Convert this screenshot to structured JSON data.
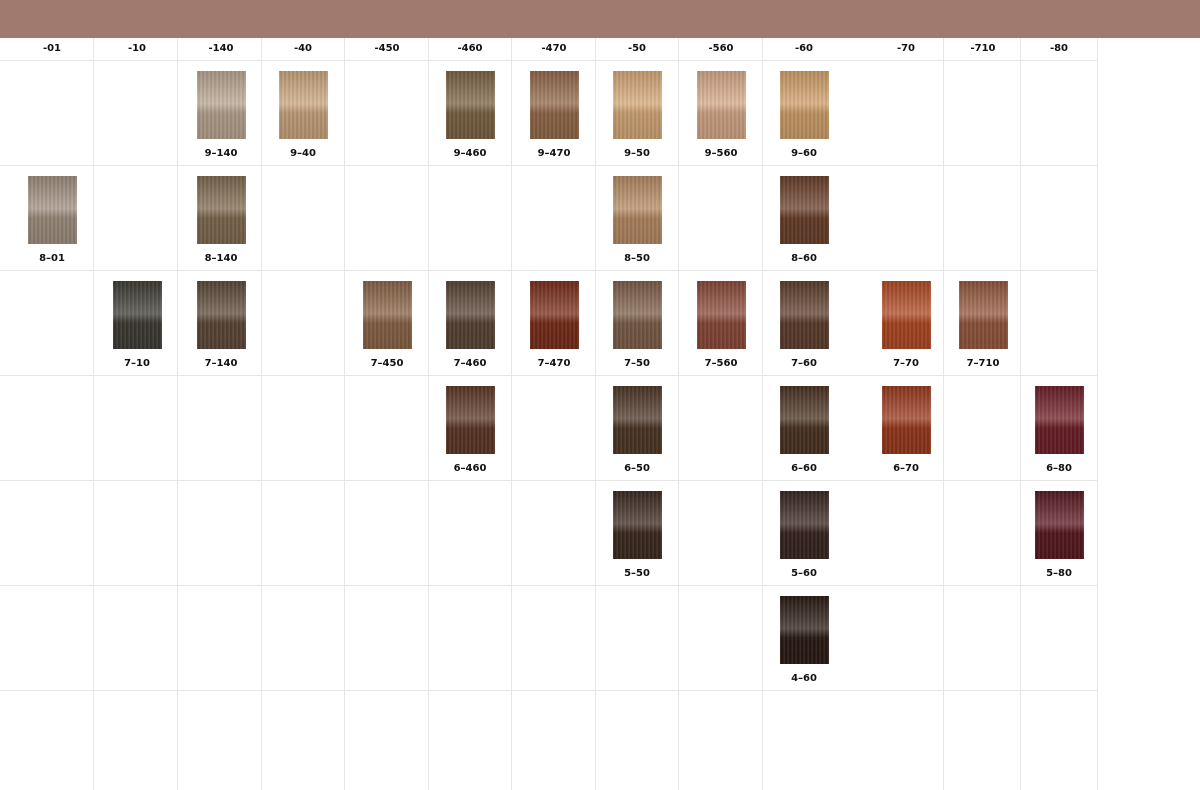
{
  "columns": [
    "-01",
    "-10",
    "-140",
    "-40",
    "-450",
    "-460",
    "-470",
    "-50",
    "-560",
    "-60",
    "-70",
    "-710",
    "-80"
  ],
  "rows": [
    [
      null,
      null,
      {
        "label": "9–140",
        "color": "#b8a590"
      },
      {
        "label": "9–40",
        "color": "#c9a57e"
      },
      null,
      {
        "label": "9–460",
        "color": "#7d6445"
      },
      {
        "label": "9–470",
        "color": "#93694a"
      },
      {
        "label": "9–50",
        "color": "#d4a878"
      },
      {
        "label": "9–560",
        "color": "#d5a888"
      },
      {
        "label": "9–60",
        "color": "#cf9f6a"
      },
      null,
      null,
      null
    ],
    [
      {
        "label": "8–01",
        "color": "#a08e7f"
      },
      null,
      {
        "label": "8–140",
        "color": "#7f6a50"
      },
      null,
      null,
      null,
      null,
      {
        "label": "8–50",
        "color": "#b58a64"
      },
      null,
      {
        "label": "8–60",
        "color": "#6a402b"
      },
      null,
      null,
      null
    ],
    [
      null,
      {
        "label": "7–10",
        "color": "#3f3d35"
      },
      {
        "label": "7–140",
        "color": "#5e4a3a"
      },
      null,
      {
        "label": "7–450",
        "color": "#8a6448"
      },
      {
        "label": "7–460",
        "color": "#5a4536"
      },
      {
        "label": "7–470",
        "color": "#7a2e1a"
      },
      {
        "label": "7–50",
        "color": "#7d5f4a"
      },
      {
        "label": "7–560",
        "color": "#8a4a3a"
      },
      {
        "label": "7–60",
        "color": "#5e3f2e"
      },
      {
        "label": "7–70",
        "color": "#b04a24"
      },
      {
        "label": "7–710",
        "color": "#94583e"
      },
      null
    ],
    [
      null,
      null,
      null,
      null,
      null,
      {
        "label": "6–460",
        "color": "#5e3828"
      },
      null,
      {
        "label": "6–50",
        "color": "#4e3828"
      },
      null,
      {
        "label": "6–60",
        "color": "#4c3424"
      },
      {
        "label": "6–70",
        "color": "#9a3a1e"
      },
      null,
      {
        "label": "6–80",
        "color": "#6e2028"
      }
    ],
    [
      null,
      null,
      null,
      null,
      null,
      null,
      null,
      {
        "label": "5–50",
        "color": "#3e2c22"
      },
      null,
      {
        "label": "5–60",
        "color": "#3a2620"
      },
      null,
      null,
      {
        "label": "5–80",
        "color": "#5a1a22"
      }
    ],
    [
      null,
      null,
      null,
      null,
      null,
      null,
      null,
      null,
      null,
      {
        "label": "4–60",
        "color": "#2c1c16"
      },
      null,
      null,
      null
    ]
  ]
}
